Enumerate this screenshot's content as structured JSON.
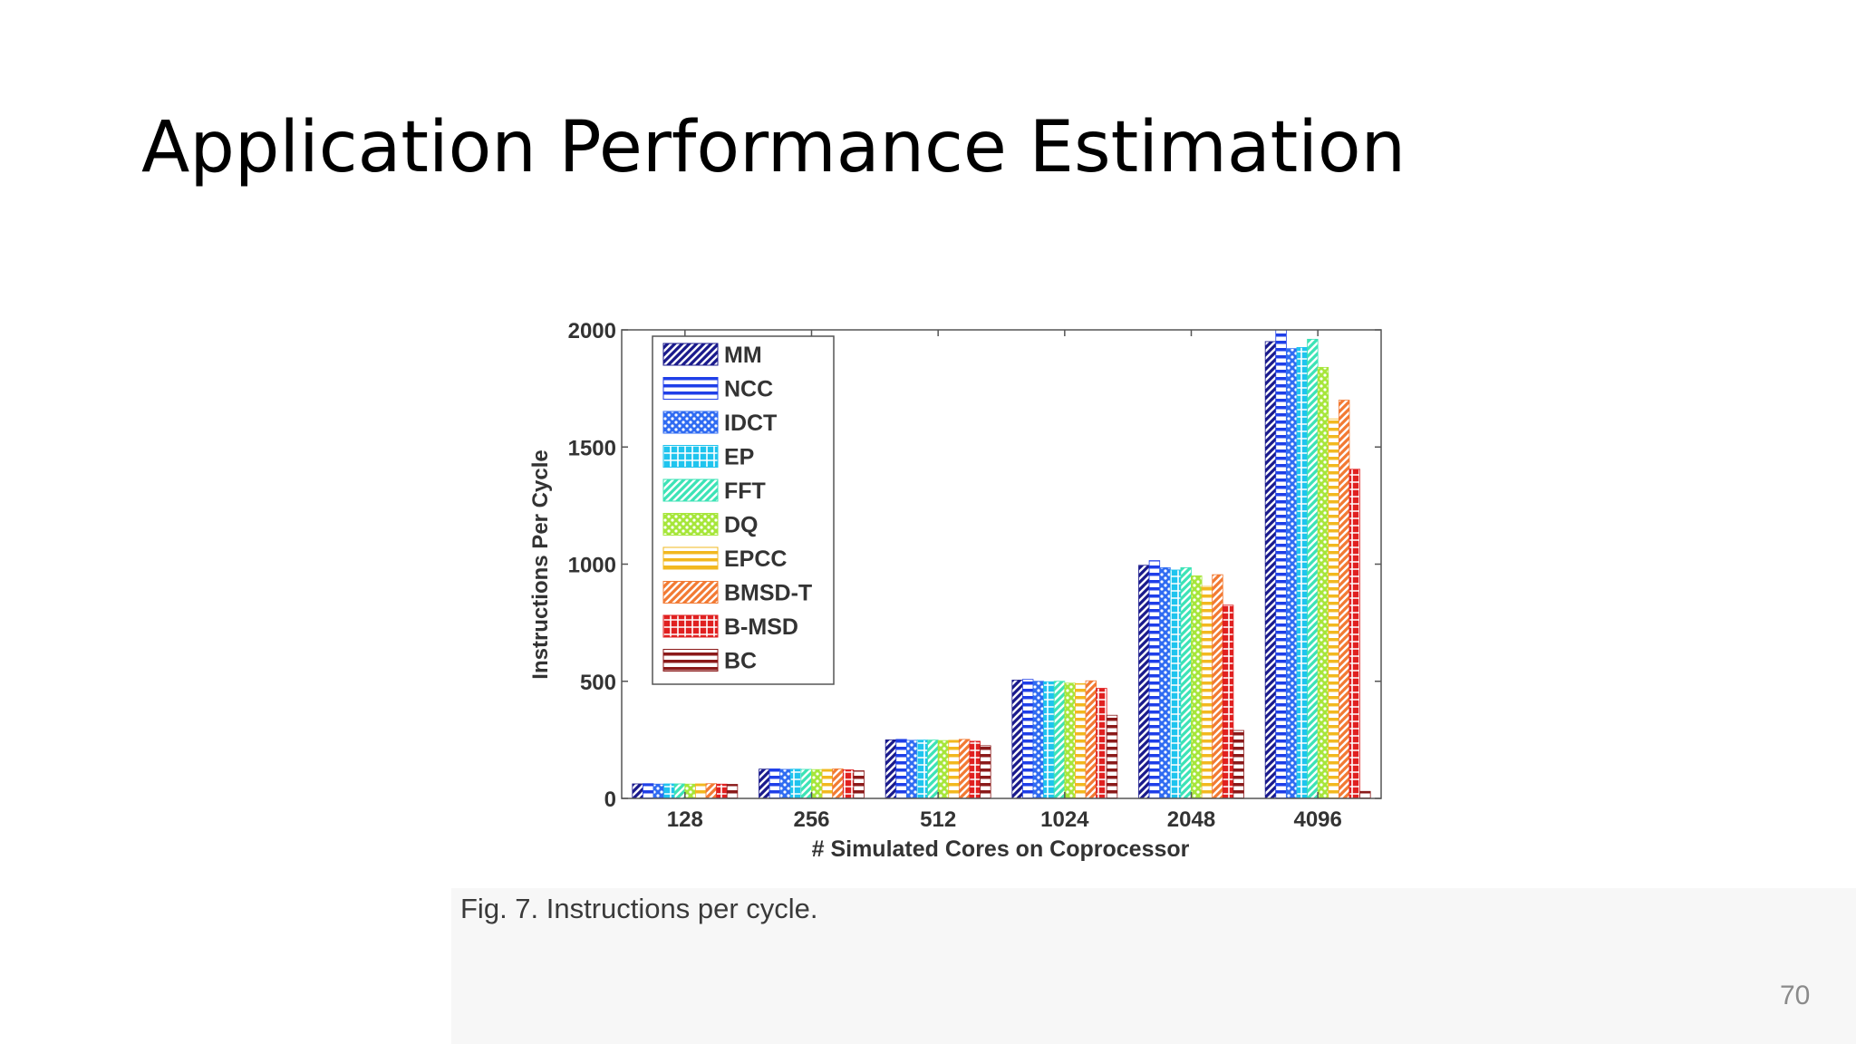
{
  "slide": {
    "title": "Application Performance Estimation",
    "caption": "Fig. 7. Instructions per cycle.",
    "page_number": "70"
  },
  "chart_data": {
    "type": "bar",
    "title": "",
    "xlabel": "# Simulated Cores on Coprocessor",
    "ylabel": "Instructions Per Cycle",
    "ylim": [
      0,
      2000
    ],
    "yticks": [
      0,
      500,
      1000,
      1500,
      2000
    ],
    "grid": false,
    "legend_position": "top-left",
    "categories": [
      "128",
      "256",
      "512",
      "1024",
      "2048",
      "4096"
    ],
    "series": [
      {
        "name": "MM",
        "color": "#1a1a8c",
        "pattern": "diag",
        "values": [
          62,
          125,
          250,
          505,
          995,
          1950
        ]
      },
      {
        "name": "NCC",
        "color": "#1f3fe8",
        "pattern": "hstripe",
        "values": [
          63,
          126,
          252,
          508,
          1015,
          2000
        ]
      },
      {
        "name": "IDCT",
        "color": "#2f6bf2",
        "pattern": "dots",
        "values": [
          61,
          124,
          248,
          500,
          985,
          1920
        ]
      },
      {
        "name": "EP",
        "color": "#1fc4ee",
        "pattern": "grid",
        "values": [
          62,
          125,
          249,
          498,
          975,
          1925
        ]
      },
      {
        "name": "FFT",
        "color": "#3ce3b6",
        "pattern": "diag",
        "values": [
          62,
          124,
          249,
          500,
          985,
          1960
        ]
      },
      {
        "name": "DQ",
        "color": "#a6e63a",
        "pattern": "dots",
        "values": [
          61,
          123,
          247,
          492,
          950,
          1840
        ]
      },
      {
        "name": "EPCC",
        "color": "#f2b81f",
        "pattern": "hstripe",
        "values": [
          62,
          124,
          248,
          490,
          905,
          1620
        ]
      },
      {
        "name": "BMSD-T",
        "color": "#f27a33",
        "pattern": "diag",
        "values": [
          63,
          126,
          252,
          502,
          955,
          1700
        ]
      },
      {
        "name": "B-MSD",
        "color": "#e02020",
        "pattern": "grid",
        "values": [
          61,
          122,
          244,
          470,
          825,
          1405
        ]
      },
      {
        "name": "BC",
        "color": "#8b1a1a",
        "pattern": "hstripe",
        "values": [
          60,
          118,
          225,
          355,
          290,
          30
        ]
      }
    ]
  }
}
